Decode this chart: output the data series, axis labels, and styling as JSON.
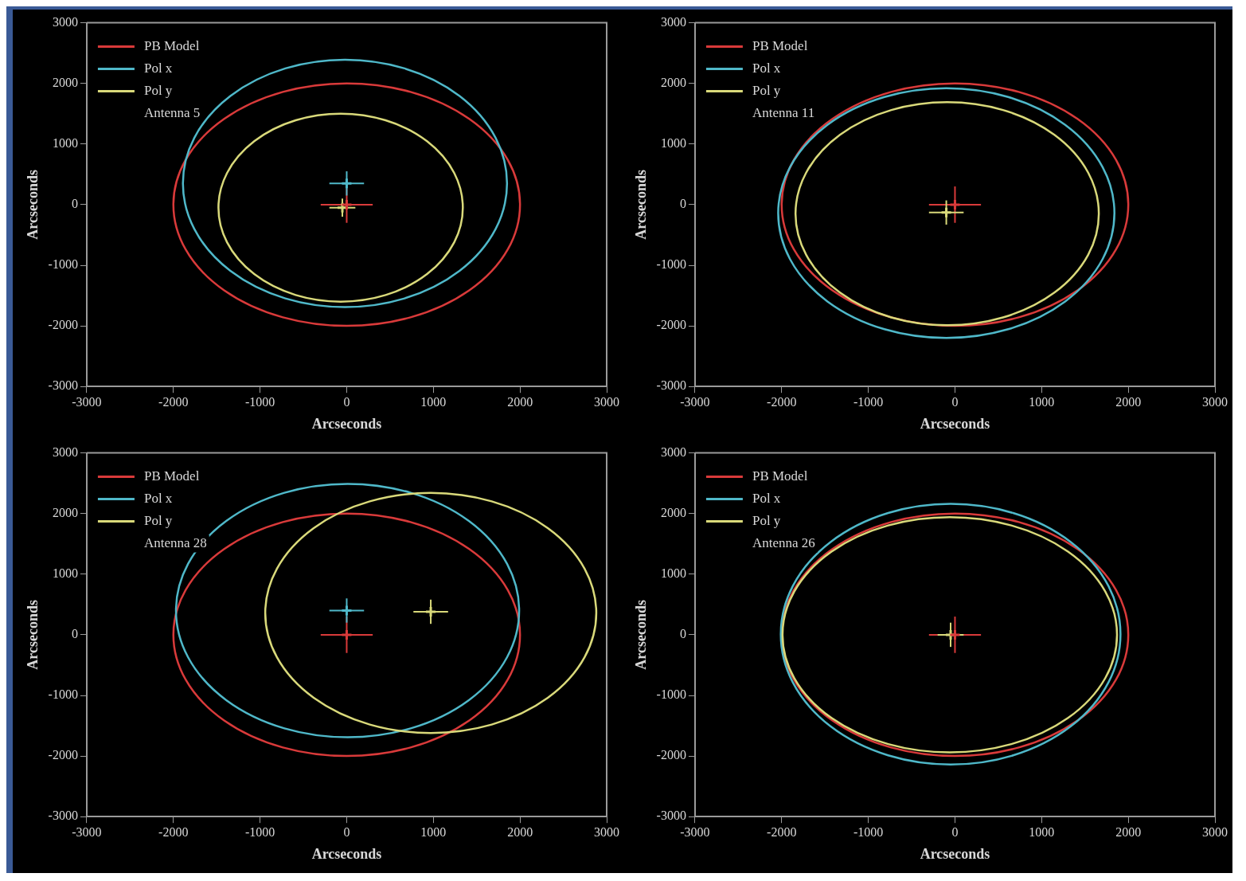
{
  "chart_data": [
    {
      "type": "scatter",
      "xlabel": "Arcseconds",
      "ylabel": "Arcseconds",
      "xlim": [
        -3000,
        3000
      ],
      "ylim": [
        -3000,
        3000
      ],
      "xticks": [
        -3000,
        -2000,
        -1000,
        0,
        1000,
        2000,
        3000
      ],
      "yticks": [
        -3000,
        -2000,
        -1000,
        0,
        1000,
        2000,
        3000
      ],
      "grid": false,
      "legend": "top left",
      "marker": "cross",
      "annotations": [
        "Antenna 5"
      ],
      "series": [
        {
          "name": "PB Model",
          "color": "#d93a3a",
          "x": [
            0
          ],
          "values": [
            0
          ],
          "errors": [
            300
          ],
          "xerrors": [
            300
          ]
        },
        {
          "name": "Pol x",
          "color": "#4fb8c9",
          "x": [
            0
          ],
          "values": [
            350
          ],
          "errors": [
            200
          ],
          "xerrors": [
            200
          ]
        },
        {
          "name": "Pol y",
          "color": "#d9d97a",
          "x": [
            -50
          ],
          "values": [
            -50
          ],
          "errors": [
            150
          ],
          "xerrors": [
            150
          ]
        }
      ]
    },
    {
      "type": "scatter",
      "xlabel": "Arcseconds",
      "ylabel": "Arcseconds",
      "xlim": [
        -3000,
        3000
      ],
      "ylim": [
        -3000,
        3000
      ],
      "xticks": [
        -3000,
        -2000,
        -1000,
        0,
        1000,
        2000,
        3000
      ],
      "yticks": [
        -3000,
        -2000,
        -1000,
        0,
        1000,
        2000,
        3000
      ],
      "grid": false,
      "legend": "top left",
      "marker": "cross",
      "annotations": [
        "Antenna 11"
      ],
      "series": [
        {
          "name": "PB Model",
          "color": "#d93a3a",
          "x": [
            0
          ],
          "values": [
            0
          ],
          "errors": [
            300
          ],
          "xerrors": [
            300
          ]
        },
        {
          "name": "Pol x",
          "color": "#4fb8c9",
          "x": [
            null
          ],
          "values": [
            null
          ]
        },
        {
          "name": "Pol y",
          "color": "#d9d97a",
          "x": [
            -100
          ],
          "values": [
            -130
          ],
          "errors": [
            200
          ],
          "xerrors": [
            200
          ]
        }
      ]
    },
    {
      "type": "scatter",
      "xlabel": "Arcseconds",
      "ylabel": "Arcseconds",
      "xlim": [
        -3000,
        3000
      ],
      "ylim": [
        -3000,
        3000
      ],
      "xticks": [
        -3000,
        -2000,
        -1000,
        0,
        1000,
        2000,
        3000
      ],
      "yticks": [
        -3000,
        -2000,
        -1000,
        0,
        1000,
        2000,
        3000
      ],
      "grid": false,
      "legend": "top left",
      "marker": "cross",
      "annotations": [
        "Antenna 28"
      ],
      "series": [
        {
          "name": "PB Model",
          "color": "#d93a3a",
          "x": [
            0
          ],
          "values": [
            0
          ],
          "errors": [
            300
          ],
          "xerrors": [
            300
          ]
        },
        {
          "name": "Pol x",
          "color": "#4fb8c9",
          "x": [
            0
          ],
          "values": [
            400
          ],
          "errors": [
            200
          ],
          "xerrors": [
            200
          ]
        },
        {
          "name": "Pol y",
          "color": "#d9d97a",
          "x": [
            970
          ],
          "values": [
            380
          ],
          "errors": [
            200
          ],
          "xerrors": [
            200
          ]
        }
      ]
    },
    {
      "type": "scatter",
      "xlabel": "Arcseconds",
      "ylabel": "Arcseconds",
      "xlim": [
        -3000,
        3000
      ],
      "ylim": [
        -3000,
        3000
      ],
      "xticks": [
        -3000,
        -2000,
        -1000,
        0,
        1000,
        2000,
        3000
      ],
      "yticks": [
        -3000,
        -2000,
        -1000,
        0,
        1000,
        2000,
        3000
      ],
      "grid": false,
      "legend": "top left",
      "marker": "cross",
      "annotations": [
        "Antenna 26"
      ],
      "series": [
        {
          "name": "PB Model",
          "color": "#d93a3a",
          "x": [
            0
          ],
          "values": [
            0
          ],
          "errors": [
            300
          ],
          "xerrors": [
            300
          ]
        },
        {
          "name": "Pol x",
          "color": "#4fb8c9",
          "x": [
            null
          ],
          "values": [
            null
          ]
        },
        {
          "name": "Pol y",
          "color": "#d9d97a",
          "x": [
            -50
          ],
          "values": [
            0
          ],
          "errors": [
            200
          ],
          "xerrors": [
            150
          ]
        }
      ]
    }
  ]
}
